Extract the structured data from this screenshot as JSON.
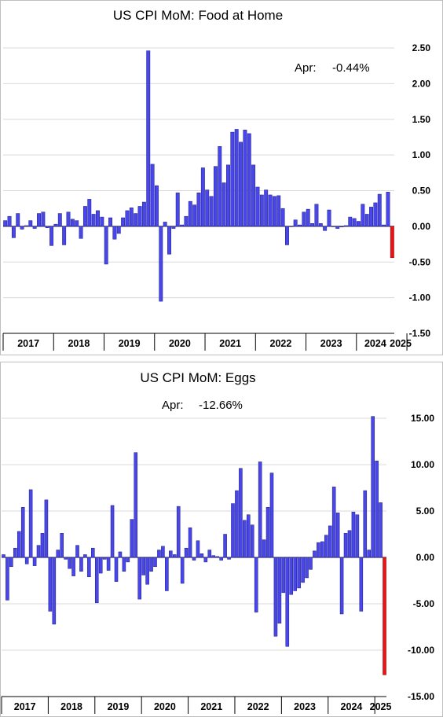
{
  "chart_data": [
    {
      "type": "bar",
      "title": "US CPI MoM: Food at Home",
      "annotation": {
        "label": "Apr:",
        "value": "-0.44%"
      },
      "ylim": [
        -1.5,
        2.5
      ],
      "yticks": [
        "2.50",
        "2.00",
        "1.50",
        "1.00",
        "0.50",
        "0.00",
        "-0.50",
        "-1.00",
        "-1.50"
      ],
      "ytick_values": [
        2.5,
        2.0,
        1.5,
        1.0,
        0.5,
        0.0,
        -0.5,
        -1.0,
        -1.5
      ],
      "year_labels": [
        "2017",
        "2018",
        "2019",
        "2020",
        "2021",
        "2022",
        "2023",
        "2024",
        "2025"
      ],
      "start": "2017-01",
      "values": [
        0.08,
        0.14,
        -0.16,
        0.18,
        -0.04,
        0.01,
        0.08,
        -0.03,
        0.18,
        0.2,
        -0.02,
        -0.27,
        0.03,
        0.18,
        -0.26,
        0.2,
        0.1,
        0.08,
        -0.17,
        0.28,
        0.38,
        0.17,
        0.22,
        0.13,
        -0.53,
        0.12,
        -0.18,
        -0.1,
        0.12,
        0.22,
        0.26,
        0.18,
        0.28,
        0.34,
        2.46,
        0.87,
        0.57,
        -1.05,
        0.06,
        -0.39,
        -0.03,
        0.47,
        0.02,
        0.14,
        0.35,
        0.3,
        0.47,
        0.82,
        0.51,
        0.42,
        0.84,
        1.12,
        0.61,
        0.86,
        1.32,
        1.36,
        1.18,
        1.35,
        1.3,
        0.86,
        0.55,
        0.44,
        0.51,
        0.44,
        0.42,
        0.43,
        0.25,
        -0.26,
        0.0,
        0.09,
        0.02,
        0.2,
        0.24,
        0.04,
        0.31,
        0.04,
        -0.06,
        0.23,
        0.0,
        -0.03,
        -0.01,
        0.01,
        0.13,
        0.11,
        0.07,
        0.31,
        0.17,
        0.27,
        0.33,
        0.45,
        0.02,
        0.48,
        -0.44
      ]
    },
    {
      "type": "bar",
      "title": "US CPI MoM: Eggs",
      "annotation": {
        "label": "Apr:",
        "value": "-12.66%"
      },
      "ylim": [
        -15,
        15
      ],
      "yticks": [
        "15.00",
        "10.00",
        "5.00",
        "0.00",
        "-5.00",
        "-10.00",
        "-15.00"
      ],
      "ytick_values": [
        15,
        10,
        5,
        0,
        -5,
        -10,
        -15
      ],
      "year_labels": [
        "2017",
        "2018",
        "2019",
        "2020",
        "2021",
        "2022",
        "2023",
        "2024",
        "2025"
      ],
      "start": "2017-01",
      "values": [
        0.3,
        -4.6,
        -1.0,
        1.0,
        2.8,
        5.4,
        -0.7,
        7.3,
        -0.9,
        1.3,
        2.6,
        6.2,
        -5.8,
        -7.2,
        0.8,
        2.6,
        -0.2,
        -1.2,
        -2.0,
        1.3,
        -1.5,
        0.3,
        -2.1,
        1.0,
        -4.9,
        -1.7,
        -0.2,
        -1.4,
        5.6,
        -2.6,
        0.6,
        -1.5,
        -0.5,
        4.1,
        11.3,
        -4.5,
        -1.9,
        -2.9,
        -1.5,
        -1.0,
        0.8,
        1.2,
        -3.6,
        0.7,
        0.3,
        5.5,
        -2.8,
        1.0,
        3.2,
        -0.3,
        1.8,
        0.4,
        -0.5,
        0.8,
        0.2,
        0.1,
        -0.3,
        2.5,
        -0.2,
        5.8,
        7.2,
        9.6,
        4.0,
        4.6,
        3.5,
        -5.9,
        10.3,
        1.9,
        5.4,
        9.1,
        -8.5,
        -7.1,
        -3.8,
        -9.6,
        -4.0,
        -3.6,
        -3.3,
        -2.7,
        -2.2,
        -1.3,
        0.7,
        1.6,
        1.7,
        2.4,
        3.4,
        7.6,
        4.8,
        -6.1,
        2.6,
        2.9,
        4.9,
        4.6,
        -5.8,
        7.2,
        0.8,
        15.2,
        10.4,
        5.9,
        -12.66
      ]
    }
  ]
}
